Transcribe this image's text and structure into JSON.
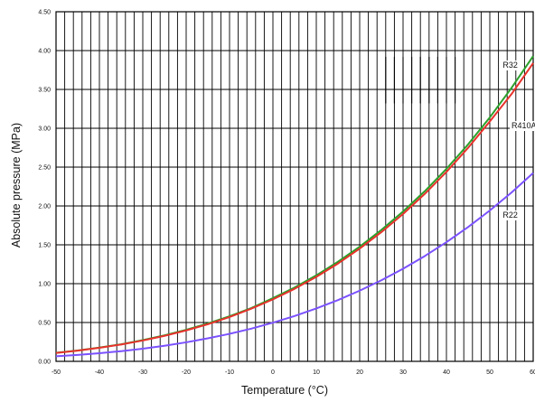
{
  "chart_data": {
    "type": "line",
    "title": "",
    "xlabel": "Temperature (°C)",
    "ylabel": "Absolute pressure (MPa)",
    "xlim": [
      -50,
      60
    ],
    "ylim": [
      0,
      4.5
    ],
    "x_ticks": [
      -50,
      -40,
      -30,
      -20,
      -10,
      0,
      10,
      20,
      30,
      40,
      50,
      60
    ],
    "x_tick_labels": [
      "-50",
      "-40",
      "-30",
      "-20",
      "-10",
      "0",
      "10",
      "20",
      "30",
      "40",
      "50",
      "60"
    ],
    "y_ticks": [
      0,
      0.5,
      1.0,
      1.5,
      2.0,
      2.5,
      3.0,
      3.5,
      4.0,
      4.5
    ],
    "y_tick_labels": [
      "0.00",
      "0.50",
      "1.00",
      "1.50",
      "2.00",
      "2.50",
      "3.00",
      "3.50",
      "4.00",
      "4.50"
    ],
    "grid": true,
    "vertical_grid_step": 2,
    "horizontal_grid_step": 0.5,
    "legend": "none",
    "x": [
      -50,
      -45,
      -40,
      -35,
      -30,
      -25,
      -20,
      -15,
      -10,
      -5,
      0,
      5,
      10,
      15,
      20,
      25,
      30,
      35,
      40,
      45,
      50,
      55,
      60
    ],
    "series": [
      {
        "name": "R32",
        "color": "#2ca02c",
        "values": [
          0.11,
          0.14,
          0.177,
          0.22,
          0.273,
          0.335,
          0.406,
          0.488,
          0.581,
          0.686,
          0.813,
          0.951,
          1.107,
          1.282,
          1.476,
          1.692,
          1.929,
          2.19,
          2.478,
          2.793,
          3.14,
          3.52,
          3.93
        ]
      },
      {
        "name": "R410A",
        "color": "#e8322c",
        "values": [
          0.108,
          0.138,
          0.175,
          0.217,
          0.268,
          0.328,
          0.398,
          0.478,
          0.57,
          0.678,
          0.798,
          0.934,
          1.087,
          1.259,
          1.451,
          1.663,
          1.897,
          2.155,
          2.438,
          2.749,
          3.088,
          3.44,
          3.84
        ]
      },
      {
        "name": "R22",
        "color": "#7b52ff",
        "values": [
          0.065,
          0.083,
          0.105,
          0.131,
          0.163,
          0.201,
          0.245,
          0.296,
          0.354,
          0.421,
          0.498,
          0.584,
          0.681,
          0.789,
          0.91,
          1.044,
          1.192,
          1.355,
          1.534,
          1.729,
          1.942,
          2.173,
          2.424
        ]
      }
    ],
    "curve_labels": [
      {
        "series": "R32",
        "text": "R32",
        "x": 53,
        "y": 3.78
      },
      {
        "series": "R410A",
        "text": "R410A",
        "x": 55,
        "y": 3.0
      },
      {
        "series": "R22",
        "text": "R22",
        "x": 53,
        "y": 1.85
      }
    ],
    "annotation_box": {
      "x_range": [
        26,
        42
      ],
      "y_range": [
        3.32,
        3.92
      ],
      "y_mid": 3.5
    }
  }
}
